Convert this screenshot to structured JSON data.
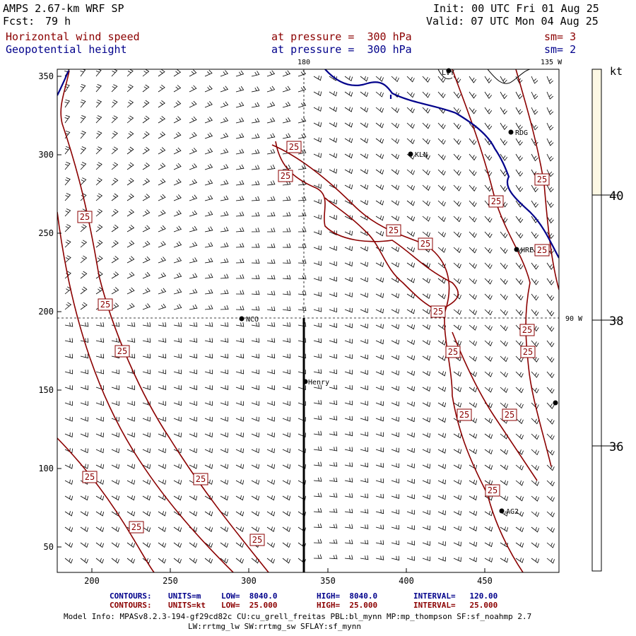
{
  "header": {
    "model": "AMPS 2.67-km WRF SP",
    "fcst_label": "Fcst:",
    "fcst_value": "79 h",
    "init": "Init: 00 UTC Fri 01 Aug 25",
    "valid": "Valid: 07 UTC Mon 04 Aug 25",
    "field1": "Horizontal wind speed",
    "field1_level": "at pressure =  300 hPa",
    "field1_sm": "sm= 3",
    "field2": "Geopotential height",
    "field2_level": "at pressure =  300 hPa",
    "field2_sm": "sm= 2"
  },
  "map": {
    "x_ticks": [
      "200",
      "250",
      "300",
      "350",
      "400",
      "450"
    ],
    "y_ticks": [
      "350",
      "300",
      "250",
      "200",
      "150",
      "100",
      "50"
    ],
    "lon_labels": {
      "top_180": "180",
      "top_135w": "135 W",
      "right_90w": "90 W"
    },
    "stations": [
      "LVY",
      "RDG",
      "KLN",
      "HRE",
      "NCO",
      "Henry",
      "AG2"
    ],
    "contour_label": "25"
  },
  "colorbar": {
    "unit": "kt",
    "labels": [
      "40",
      "38",
      "36"
    ],
    "colors": {
      "top": "#fdf8e4",
      "bottom": "#ffffff"
    }
  },
  "footer": {
    "line1_label": "CONTOURS:",
    "line1_units": "UNITS=m",
    "line1_low": "LOW=  8040.0",
    "line1_high": "HIGH=  8040.0",
    "line1_interval": "INTERVAL=   120.00",
    "line2_label": "CONTOURS:",
    "line2_units": "UNITS=kt",
    "line2_low": "LOW=  25.000",
    "line2_high": "HIGH=  25.000",
    "line2_interval": "INTERVAL=   25.000",
    "model_info": "Model Info: MPASv8.2.3-194-gf29cd82c CU:cu_grell_freitas PBL:bl_mynn MP:mp_thompson SF:sf_noahmp 2.7",
    "model_info2": "LW:rrtmg_lw SW:rrtmg_sw SFLAY:sf_mynn"
  },
  "colors": {
    "height_contour": "#00008b",
    "wind_contour": "#8b0000",
    "barb": "#000000"
  }
}
